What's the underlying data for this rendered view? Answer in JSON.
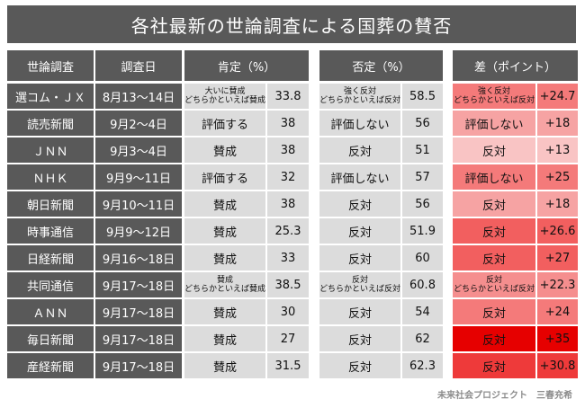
{
  "title": "各社最新の世論調査による国葬の賛否",
  "headers": {
    "survey": "世論調査",
    "date": "調査日",
    "positive": "肯定（%）",
    "negative": "否定（%）",
    "diff": "差（ポイント）"
  },
  "rows": [
    {
      "survey": "選コム・ＪＸ",
      "date": "8月13～14日",
      "pos_label": "大いに賛成\nどちらかといえば賛成",
      "pos": "33.8",
      "neg_label": "強く反対\nどちらかといえば反対",
      "neg": "58.5",
      "diff_label": "強く反対\nどちらかといえば反対",
      "diff": "+24.7",
      "color": "#f47a7a"
    },
    {
      "survey": "読売新聞",
      "date": "9月2～4日",
      "pos_label": "評価する",
      "pos": "38",
      "neg_label": "評価しない",
      "neg": "56",
      "diff_label": "評価しない",
      "diff": "+18",
      "color": "#f6a3a3"
    },
    {
      "survey": "ＪＮＮ",
      "date": "9月3～4日",
      "pos_label": "賛成",
      "pos": "38",
      "neg_label": "反対",
      "neg": "51",
      "diff_label": "反対",
      "diff": "+13",
      "color": "#f9c4c4"
    },
    {
      "survey": "ＮＨＫ",
      "date": "9月9～11日",
      "pos_label": "評価する",
      "pos": "32",
      "neg_label": "評価しない",
      "neg": "57",
      "diff_label": "評価しない",
      "diff": "+25",
      "color": "#f47a7a"
    },
    {
      "survey": "朝日新聞",
      "date": "9月10～11日",
      "pos_label": "賛成",
      "pos": "38",
      "neg_label": "反対",
      "neg": "56",
      "diff_label": "反対",
      "diff": "+18",
      "color": "#f6a3a3"
    },
    {
      "survey": "時事通信",
      "date": "9月9～12日",
      "pos_label": "賛成",
      "pos": "25.3",
      "neg_label": "反対",
      "neg": "51.9",
      "diff_label": "反対",
      "diff": "+26.6",
      "color": "#f25f5f"
    },
    {
      "survey": "日経新聞",
      "date": "9月16～18日",
      "pos_label": "賛成",
      "pos": "33",
      "neg_label": "反対",
      "neg": "60",
      "diff_label": "反対",
      "diff": "+27",
      "color": "#f25f5f"
    },
    {
      "survey": "共同通信",
      "date": "9月17～18日",
      "pos_label": "賛成\nどちらかといえば賛成",
      "pos": "38.5",
      "neg_label": "反対\nどちらかといえば反対",
      "neg": "60.8",
      "diff_label": "反対\nどちらかといえば反対",
      "diff": "+22.3",
      "color": "#f58e8e"
    },
    {
      "survey": "ＡＮＮ",
      "date": "9月17～18日",
      "pos_label": "賛成",
      "pos": "30",
      "neg_label": "反対",
      "neg": "54",
      "diff_label": "反対",
      "diff": "+24",
      "color": "#f47a7a"
    },
    {
      "survey": "毎日新聞",
      "date": "9月17～18日",
      "pos_label": "賛成",
      "pos": "27",
      "neg_label": "反対",
      "neg": "62",
      "diff_label": "反対",
      "diff": "+35",
      "color": "#e60000"
    },
    {
      "survey": "産経新聞",
      "date": "9月17～18日",
      "pos_label": "賛成",
      "pos": "31.5",
      "neg_label": "反対",
      "neg": "62.3",
      "diff_label": "反対",
      "diff": "+30.8",
      "color": "#ee3a3a"
    }
  ],
  "footer": "未来社会プロジェクト　三春充希"
}
